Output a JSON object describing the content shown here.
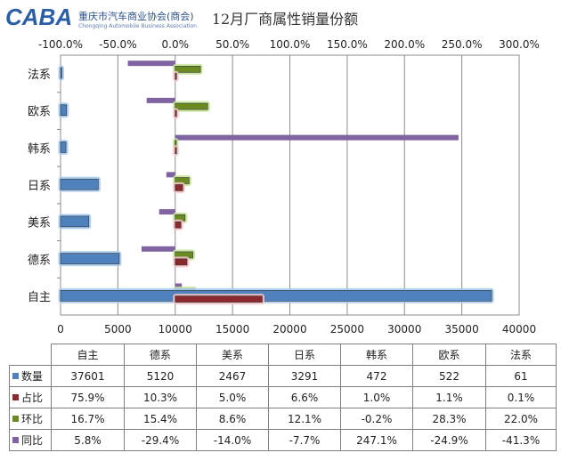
{
  "header": {
    "logo_mark": "CABA",
    "logo_cn": "重庆市汽车商业协会(商会)",
    "logo_en": "Chongqing Automobile Business Association"
  },
  "chart_data": {
    "type": "bar",
    "orientation": "horizontal",
    "title": "12月厂商属性销量份额",
    "categories": [
      "自主",
      "德系",
      "美系",
      "日系",
      "韩系",
      "欧系",
      "法系"
    ],
    "series": [
      {
        "name": "数量",
        "axis": "bottom",
        "unit": "count",
        "values": [
          37601,
          5120,
          2467,
          3291,
          472,
          522,
          61
        ],
        "labels": [
          "37601",
          "5120",
          "2467",
          "3291",
          "472",
          "522",
          "61"
        ]
      },
      {
        "name": "占比",
        "axis": "top",
        "unit": "percent",
        "values": [
          75.9,
          10.3,
          5.0,
          6.6,
          1.0,
          1.1,
          0.1
        ],
        "labels": [
          "75.9%",
          "10.3%",
          "5.0%",
          "6.6%",
          "1.0%",
          "1.1%",
          "0.1%"
        ]
      },
      {
        "name": "环比",
        "axis": "top",
        "unit": "percent",
        "values": [
          16.7,
          15.4,
          8.6,
          12.1,
          -0.2,
          28.3,
          22.0
        ],
        "labels": [
          "16.7%",
          "15.4%",
          "8.6%",
          "12.1%",
          "-0.2%",
          "28.3%",
          "22.0%"
        ]
      },
      {
        "name": "同比",
        "axis": "top",
        "unit": "percent",
        "values": [
          5.8,
          -29.4,
          -14.0,
          -7.7,
          247.1,
          -24.9,
          -41.3
        ],
        "labels": [
          "5.8%",
          "-29.4%",
          "-14.0%",
          "-7.7%",
          "247.1%",
          "-24.9%",
          "-41.3%"
        ]
      }
    ],
    "x_bottom": {
      "min": 0,
      "max": 40000,
      "ticks": [
        "0",
        "5000",
        "10000",
        "15000",
        "20000",
        "25000",
        "30000",
        "35000",
        "40000"
      ]
    },
    "x_top": {
      "min": -100,
      "max": 300,
      "ticks": [
        "-100.0%",
        "-50.0%",
        "0.0%",
        "50.0%",
        "100.0%",
        "150.0%",
        "200.0%",
        "250.0%",
        "300.0%"
      ]
    },
    "grid": true,
    "legend": "table-below",
    "colors": {
      "数量": "#4f81bd",
      "占比": "#8b2a2e",
      "环比": "#6b8a24",
      "同比": "#8064a2"
    }
  }
}
